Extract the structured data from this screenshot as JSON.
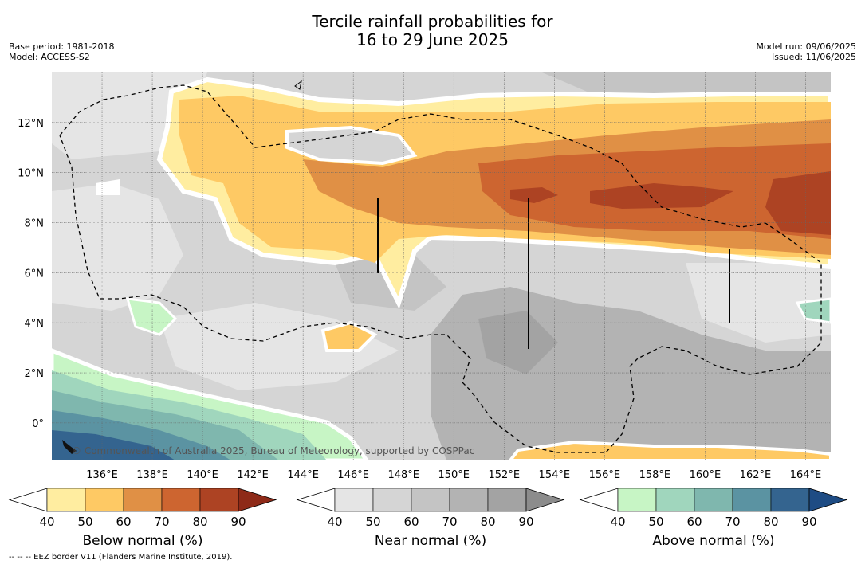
{
  "title": {
    "line1": "Tercile rainfall probabilities for",
    "line2": "16 to 29 June 2025"
  },
  "meta": {
    "base_period": "Base period: 1981-2018",
    "model": "Model: ACCESS-S2",
    "model_run": "Model run: 09/06/2025",
    "issued": "Issued: 11/06/2025"
  },
  "map": {
    "lon_range": [
      134.0,
      165.0
    ],
    "lat_range": [
      -1.5,
      14.0
    ],
    "lon_ticks": [
      "136°E",
      "138°E",
      "140°E",
      "142°E",
      "144°E",
      "146°E",
      "148°E",
      "150°E",
      "152°E",
      "154°E",
      "156°E",
      "158°E",
      "160°E",
      "162°E",
      "164°E"
    ],
    "lon_tick_values": [
      136,
      138,
      140,
      142,
      144,
      146,
      148,
      150,
      152,
      154,
      156,
      158,
      160,
      162,
      164
    ],
    "lat_ticks": [
      "12°N",
      "10°N",
      "8°N",
      "6°N",
      "4°N",
      "2°N",
      "0°"
    ],
    "lat_tick_values": [
      12,
      10,
      8,
      6,
      4,
      2,
      0
    ],
    "grid": true,
    "copyright": "© Commonwealth of Australia 2025, Bureau of Meteorology, supported by COSPPac"
  },
  "legends": [
    {
      "label": "Below normal (%)",
      "levels": [
        "40",
        "50",
        "60",
        "70",
        "80",
        "90"
      ],
      "colors": [
        "#ffeda0",
        "#fec964",
        "#e09045",
        "#cd6530",
        "#ad4323",
        "#8e2a18"
      ]
    },
    {
      "label": "Near normal (%)",
      "levels": [
        "40",
        "50",
        "60",
        "70",
        "80",
        "90"
      ],
      "colors": [
        "#e5e5e5",
        "#d5d5d5",
        "#c4c4c4",
        "#b3b3b3",
        "#a3a3a3",
        "#8c8c8c"
      ]
    },
    {
      "label": "Above normal (%)",
      "levels": [
        "40",
        "50",
        "60",
        "70",
        "80",
        "90"
      ],
      "colors": [
        "#c7f5c5",
        "#a0d6bd",
        "#7fb7ae",
        "#5b93a2",
        "#34648f",
        "#1e4c84"
      ]
    }
  ],
  "footnote": "--  --  -- EEZ border V11 (Flanders Marine Institute, 2019)."
}
